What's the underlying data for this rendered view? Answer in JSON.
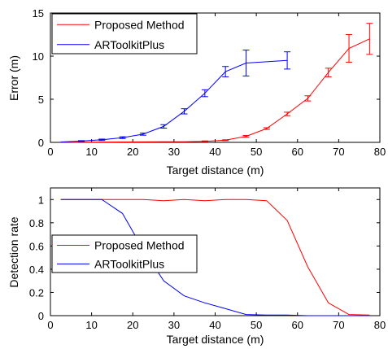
{
  "chart_data": [
    {
      "type": "line",
      "title": "",
      "xlabel": "Target distance (m)",
      "ylabel": "Error (m)",
      "xlim": [
        0,
        80
      ],
      "ylim": [
        0,
        15
      ],
      "xticks": [
        "0",
        "10",
        "20",
        "30",
        "40",
        "50",
        "60",
        "70",
        "80"
      ],
      "yticks": [
        "0",
        "5",
        "10",
        "15"
      ],
      "legend": {
        "placement": "top-left"
      },
      "series": [
        {
          "name": "Proposed Method",
          "color": "#ff0000",
          "x": [
            2.5,
            7.5,
            12.5,
            17.5,
            22.5,
            27.5,
            32.5,
            37.5,
            42.5,
            47.5,
            52.5,
            57.5,
            62.5,
            67.5,
            72.5,
            77.5
          ],
          "y": [
            0.02,
            0.03,
            0.04,
            0.05,
            0.06,
            0.07,
            0.08,
            0.12,
            0.25,
            0.7,
            1.6,
            3.3,
            5.1,
            8.1,
            10.9,
            12.0
          ],
          "err": [
            0,
            0,
            0,
            0,
            0,
            0,
            0,
            0.05,
            0.05,
            0.1,
            0.1,
            0.2,
            0.3,
            0.5,
            1.6,
            1.8
          ]
        },
        {
          "name": "ARToolkitPlus",
          "color": "#0000ff",
          "x": [
            2.5,
            7.5,
            12.5,
            17.5,
            22.5,
            27.5,
            32.5,
            37.5,
            42.5,
            47.5,
            57.5
          ],
          "y": [
            0.05,
            0.15,
            0.3,
            0.55,
            0.95,
            1.85,
            3.6,
            5.7,
            8.2,
            9.2,
            9.5
          ],
          "err": [
            0,
            0.05,
            0.08,
            0.1,
            0.12,
            0.2,
            0.3,
            0.4,
            0.6,
            1.5,
            1.0
          ]
        }
      ]
    },
    {
      "type": "line",
      "title": "",
      "xlabel": "Target distance (m)",
      "ylabel": "Detection rate",
      "xlim": [
        0,
        80
      ],
      "ylim": [
        0,
        1.1
      ],
      "xticks": [
        "0",
        "10",
        "20",
        "30",
        "40",
        "50",
        "60",
        "70",
        "80"
      ],
      "yticks": [
        "0",
        "0.2",
        "0.4",
        "0.6",
        "0.8",
        "1"
      ],
      "legend": {
        "placement": "middle-left"
      },
      "series": [
        {
          "name": "Proposed Method",
          "color": "#ff0000",
          "x": [
            2.5,
            7.5,
            12.5,
            17.5,
            22.5,
            27.5,
            32.5,
            37.5,
            42.5,
            47.5,
            52.5,
            57.5,
            62.5,
            67.5,
            72.5,
            77.5
          ],
          "y": [
            1.0,
            1.0,
            1.0,
            1.0,
            1.0,
            0.99,
            1.0,
            0.99,
            1.0,
            1.0,
            0.99,
            0.82,
            0.42,
            0.11,
            0.01,
            0.005
          ]
        },
        {
          "name": "ARToolkitPlus",
          "color": "#0000ff",
          "x": [
            2.5,
            7.5,
            12.5,
            17.5,
            22.5,
            27.5,
            32.5,
            37.5,
            42.5,
            47.5,
            52.5,
            57.5,
            62.5,
            67.5,
            72.5,
            77.5
          ],
          "y": [
            1.0,
            1.0,
            1.0,
            0.88,
            0.57,
            0.3,
            0.17,
            0.11,
            0.06,
            0.01,
            0.005,
            0.005,
            0.0,
            0.0,
            0.0,
            0.0
          ]
        }
      ]
    }
  ]
}
